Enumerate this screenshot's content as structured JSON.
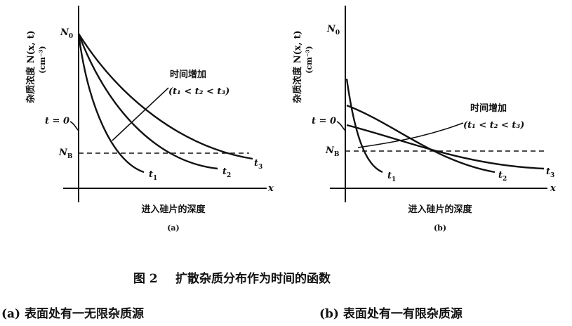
{
  "panels": [
    {
      "y_label": "杂质浓度 N(x, t)",
      "y_unit": "(cm⁻³)",
      "n0": {
        "text": "N",
        "sub": "0"
      },
      "t0": "t = 0",
      "nb": {
        "text": "N",
        "sub": "B"
      },
      "arrow_label": "时间增加",
      "order": "(t₁ < t₂ < t₃)",
      "curves": [
        {
          "text": "t",
          "sub": "1"
        },
        {
          "text": "t",
          "sub": "2"
        },
        {
          "text": "t",
          "sub": "3"
        }
      ],
      "x_symbol": "x",
      "x_label": "进入硅片的深度",
      "tag": "(a)"
    },
    {
      "y_label": "杂质浓度 N(x, t)",
      "y_unit": "(cm⁻³)",
      "n0": {
        "text": "N",
        "sub": "0"
      },
      "t0": "t = 0",
      "nb": {
        "text": "N",
        "sub": "B"
      },
      "arrow_label": "时间增加",
      "order": "(t₁ < t₂ < t₃)",
      "curves": [
        {
          "text": "t",
          "sub": "1"
        },
        {
          "text": "t",
          "sub": "2"
        },
        {
          "text": "t",
          "sub": "3"
        }
      ],
      "x_symbol": "x",
      "x_label": "进入硅片的深度",
      "tag": "(b)"
    }
  ],
  "caption": {
    "figure": "图 2",
    "title": "扩散杂质分布作为时间的函数",
    "a": "(a) 表面处有一无限杂质源",
    "b": "(b) 表面处有一有限杂质源"
  }
}
